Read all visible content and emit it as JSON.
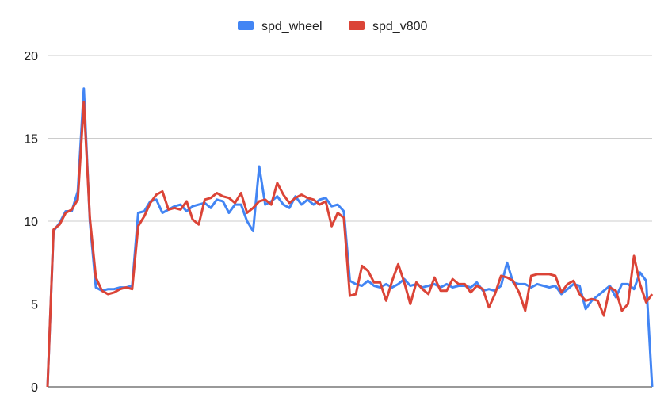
{
  "chart_data": {
    "type": "line",
    "title": "",
    "xlabel": "",
    "ylabel": "",
    "ylim": [
      0,
      20
    ],
    "yticks": [
      0,
      5,
      10,
      15,
      20
    ],
    "yticks_labels": [
      "0",
      "5",
      "10",
      "15",
      "20"
    ],
    "grid": true,
    "legend": "top-center",
    "x": [
      0,
      1,
      2,
      3,
      4,
      5,
      6,
      7,
      8,
      9,
      10,
      11,
      12,
      13,
      14,
      15,
      16,
      17,
      18,
      19,
      20,
      21,
      22,
      23,
      24,
      25,
      26,
      27,
      28,
      29,
      30,
      31,
      32,
      33,
      34,
      35,
      36,
      37,
      38,
      39,
      40,
      41,
      42,
      43,
      44,
      45,
      46,
      47,
      48,
      49,
      50,
      51,
      52,
      53,
      54,
      55,
      56,
      57,
      58,
      59,
      60,
      61,
      62,
      63,
      64,
      65,
      66,
      67,
      68,
      69,
      70,
      71,
      72,
      73,
      74,
      75,
      76,
      77,
      78,
      79,
      80,
      81,
      82,
      83,
      84,
      85,
      86,
      87,
      88,
      89,
      90,
      91,
      92,
      93,
      94,
      95,
      96,
      97,
      98,
      99,
      100
    ],
    "series": [
      {
        "name": "spd_wheel",
        "color": "#4285f4",
        "values": [
          0,
          9.4,
          9.9,
          10.6,
          10.6,
          11.8,
          18.0,
          10.0,
          6.0,
          5.8,
          5.9,
          5.9,
          6.0,
          6.0,
          6.1,
          10.5,
          10.6,
          11.2,
          11.3,
          10.5,
          10.7,
          10.9,
          11.0,
          10.6,
          10.9,
          11.0,
          11.1,
          10.8,
          11.3,
          11.2,
          10.5,
          11.0,
          11.0,
          10.0,
          9.4,
          13.3,
          11.0,
          11.2,
          11.5,
          11.0,
          10.8,
          11.5,
          11.0,
          11.3,
          11.0,
          11.3,
          11.4,
          10.9,
          11.0,
          10.6,
          6.4,
          6.2,
          6.1,
          6.4,
          6.1,
          6.0,
          6.2,
          6.0,
          6.2,
          6.5,
          6.1,
          6.2,
          6.0,
          6.1,
          6.2,
          6.0,
          6.2,
          6.0,
          6.1,
          6.1,
          6.0,
          6.3,
          5.8,
          5.9,
          5.8,
          6.1,
          7.5,
          6.3,
          6.2,
          6.2,
          6.0,
          6.2,
          6.1,
          6.0,
          6.1,
          5.6,
          5.9,
          6.2,
          6.1,
          4.7,
          5.2,
          5.5,
          5.8,
          6.1,
          5.4,
          6.2,
          6.2,
          5.9,
          6.9,
          6.4,
          0
        ]
      },
      {
        "name": "spd_v800",
        "color": "#db4437",
        "values": [
          0,
          9.5,
          9.8,
          10.5,
          10.7,
          11.3,
          17.2,
          10.2,
          6.6,
          5.8,
          5.6,
          5.7,
          5.9,
          6.0,
          5.9,
          9.7,
          10.3,
          11.1,
          11.6,
          11.8,
          10.7,
          10.8,
          10.7,
          11.2,
          10.1,
          9.8,
          11.3,
          11.4,
          11.7,
          11.5,
          11.4,
          11.1,
          11.7,
          10.5,
          10.8,
          11.2,
          11.3,
          11.0,
          12.3,
          11.6,
          11.1,
          11.4,
          11.6,
          11.4,
          11.3,
          11.0,
          11.2,
          9.7,
          10.5,
          10.2,
          5.5,
          5.6,
          7.3,
          7.0,
          6.3,
          6.3,
          5.2,
          6.4,
          7.4,
          6.3,
          5.0,
          6.3,
          5.9,
          5.6,
          6.6,
          5.8,
          5.8,
          6.5,
          6.2,
          6.2,
          5.7,
          6.1,
          5.9,
          4.8,
          5.6,
          6.7,
          6.6,
          6.4,
          5.7,
          4.6,
          6.7,
          6.8,
          6.8,
          6.8,
          6.7,
          5.7,
          6.2,
          6.4,
          5.6,
          5.2,
          5.3,
          5.2,
          4.3,
          6.0,
          5.8,
          4.6,
          5.0,
          7.9,
          6.2,
          5.1,
          5.6
        ]
      }
    ]
  }
}
